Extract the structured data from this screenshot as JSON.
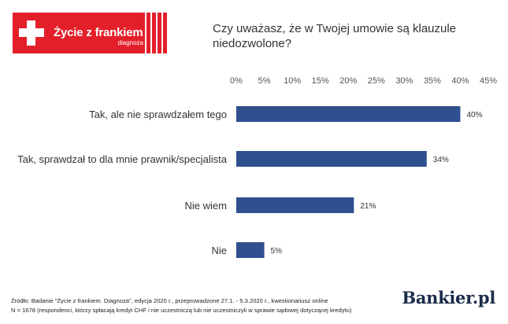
{
  "logo": {
    "title": "Życie z frankiem",
    "subtitle": "diagnoza",
    "cross_icon": "swiss-cross-icon",
    "color": "#e3202a"
  },
  "question": "Czy uważasz, że w Twojej umowie są klauzule niedozwolone?",
  "chart_data": {
    "type": "bar",
    "orientation": "horizontal",
    "title": "Czy uważasz, że w Twojej umowie są klauzule niedozwolone?",
    "categories": [
      "Tak, ale nie sprawdzałem tego",
      "Tak, sprawdzał to dla mnie prawnik/specjalista",
      "Nie wiem",
      "Nie"
    ],
    "values": [
      40,
      34,
      21,
      5
    ],
    "value_labels": [
      "40%",
      "34%",
      "21%",
      "5%"
    ],
    "xlim": [
      0,
      45
    ],
    "x_ticks": [
      "0%",
      "5%",
      "10%",
      "15%",
      "20%",
      "25%",
      "30%",
      "35%",
      "40%",
      "45%"
    ],
    "x_axis_position": "top",
    "grid": false,
    "legend": "none",
    "bar_color": "#2f4f8f"
  },
  "footer": {
    "source": "Źródło: Badanie \"Życie z frankiem. Diagnoza\", edycja 2020 r., przeprowadzone 27.1. - 5.3.2020 r., kwestionariusz online",
    "sample": "N = 1678 (respondenci, którzy spłacają kredyt CHF i nie uczestniczą lub nie uczestniczyli w sprawie sądowej dotyczącej kredytu)"
  },
  "brand": "Bankier.pl"
}
